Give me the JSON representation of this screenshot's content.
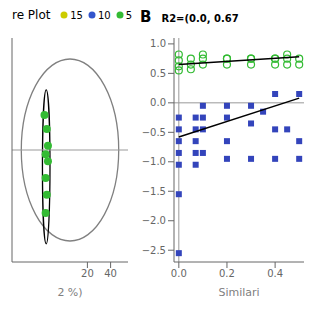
{
  "chart_data": [
    {
      "type": "scatter",
      "title": "re Plot",
      "xlabel": "2 %)",
      "xlim": [
        -45,
        55
      ],
      "ylim": [
        -8,
        8
      ],
      "xticks": [
        20,
        40
      ],
      "yticks": [],
      "tick_labels": "x",
      "legend": "upper right",
      "grid": false,
      "hline": 0,
      "ellipses": [
        {
          "cx": 5,
          "cy": 0,
          "rx": 42,
          "ry": 6.5,
          "color": "#808080"
        },
        {
          "cx": -15.5,
          "cy": -1.2,
          "width": 6.5,
          "height": 11.0,
          "color": "#000000"
        }
      ],
      "series": [
        {
          "name": "15",
          "color": "#cccc00",
          "marker": "circle",
          "x": [],
          "values": []
        },
        {
          "name": "10",
          "color": "#3355cc",
          "marker": "circle",
          "x": [],
          "values": []
        },
        {
          "name": "5",
          "color": "#33bb33",
          "marker": "circle",
          "x": [
            -17,
            -15,
            -14,
            -16,
            -14,
            -16,
            -15,
            -16
          ],
          "values": [
            2.5,
            1.5,
            0.3,
            -0.3,
            -0.8,
            -2.0,
            -3.2,
            -4.5
          ]
        }
      ]
    },
    {
      "type": "scatter",
      "title": "B",
      "annotations": [
        "R2=(0.0, 0.67"
      ],
      "xlabel": "Similari",
      "xlim": [
        -0.02,
        0.52
      ],
      "ylim": [
        -2.7,
        1.1
      ],
      "xticks": [
        {
          "value": 0,
          "label": "0.0"
        },
        0.2,
        0.4
      ],
      "yticks": [
        {
          "value": 1,
          "label": "1.0"
        },
        0.5,
        {
          "value": 0,
          "label": "0.0"
        },
        {
          "value": -0.5,
          "label": "−0.5"
        },
        {
          "value": -1,
          "label": "−1.0"
        },
        {
          "value": -1.5,
          "label": "−1.5"
        },
        {
          "value": -2,
          "label": "−2.0"
        },
        {
          "value": -2.5,
          "label": "−2.5"
        }
      ],
      "grid": false,
      "hline": 0,
      "vline": 0,
      "series": [
        {
          "color": "#33bb33",
          "marker": "open_circle",
          "x": [
            0.0,
            0.0,
            0.0,
            0.0,
            0.05,
            0.05,
            0.05,
            0.1,
            0.1,
            0.1,
            0.2,
            0.2,
            0.2,
            0.3,
            0.3,
            0.3,
            0.4,
            0.4,
            0.4,
            0.45,
            0.45,
            0.45,
            0.5,
            0.5
          ],
          "values": [
            0.82,
            0.72,
            0.62,
            0.55,
            0.75,
            0.65,
            0.57,
            0.75,
            0.65,
            0.82,
            0.75,
            0.65,
            0.75,
            0.75,
            0.65,
            0.75,
            0.75,
            0.65,
            0.75,
            0.75,
            0.65,
            0.82,
            0.75,
            0.65
          ]
        },
        {
          "color": "#3344bb",
          "marker": "square",
          "x": [
            0.0,
            0.0,
            0.0,
            0.0,
            0.0,
            0.0,
            0.0,
            0.07,
            0.07,
            0.07,
            0.07,
            0.07,
            0.1,
            0.1,
            0.1,
            0.1,
            0.2,
            0.2,
            0.2,
            0.2,
            0.3,
            0.3,
            0.3,
            0.35,
            0.4,
            0.4,
            0.4,
            0.45,
            0.5,
            0.5,
            0.5
          ],
          "values": [
            -0.25,
            -0.45,
            -0.65,
            -0.85,
            -1.05,
            -1.55,
            -2.55,
            -0.25,
            -0.45,
            -0.65,
            -0.85,
            -1.05,
            -0.05,
            -0.25,
            -0.45,
            -0.85,
            -0.05,
            -0.25,
            -0.65,
            -0.95,
            -0.05,
            -0.35,
            -0.95,
            -0.15,
            0.15,
            -0.45,
            -0.95,
            -0.45,
            0.15,
            -0.65,
            -0.95
          ]
        },
        {
          "type": "line",
          "color": "#000000",
          "x": [
            0.0,
            0.5
          ],
          "values": [
            0.65,
            0.78
          ]
        },
        {
          "type": "line",
          "color": "#000000",
          "x": [
            0.0,
            0.5
          ],
          "values": [
            -0.58,
            0.08
          ]
        }
      ]
    }
  ]
}
